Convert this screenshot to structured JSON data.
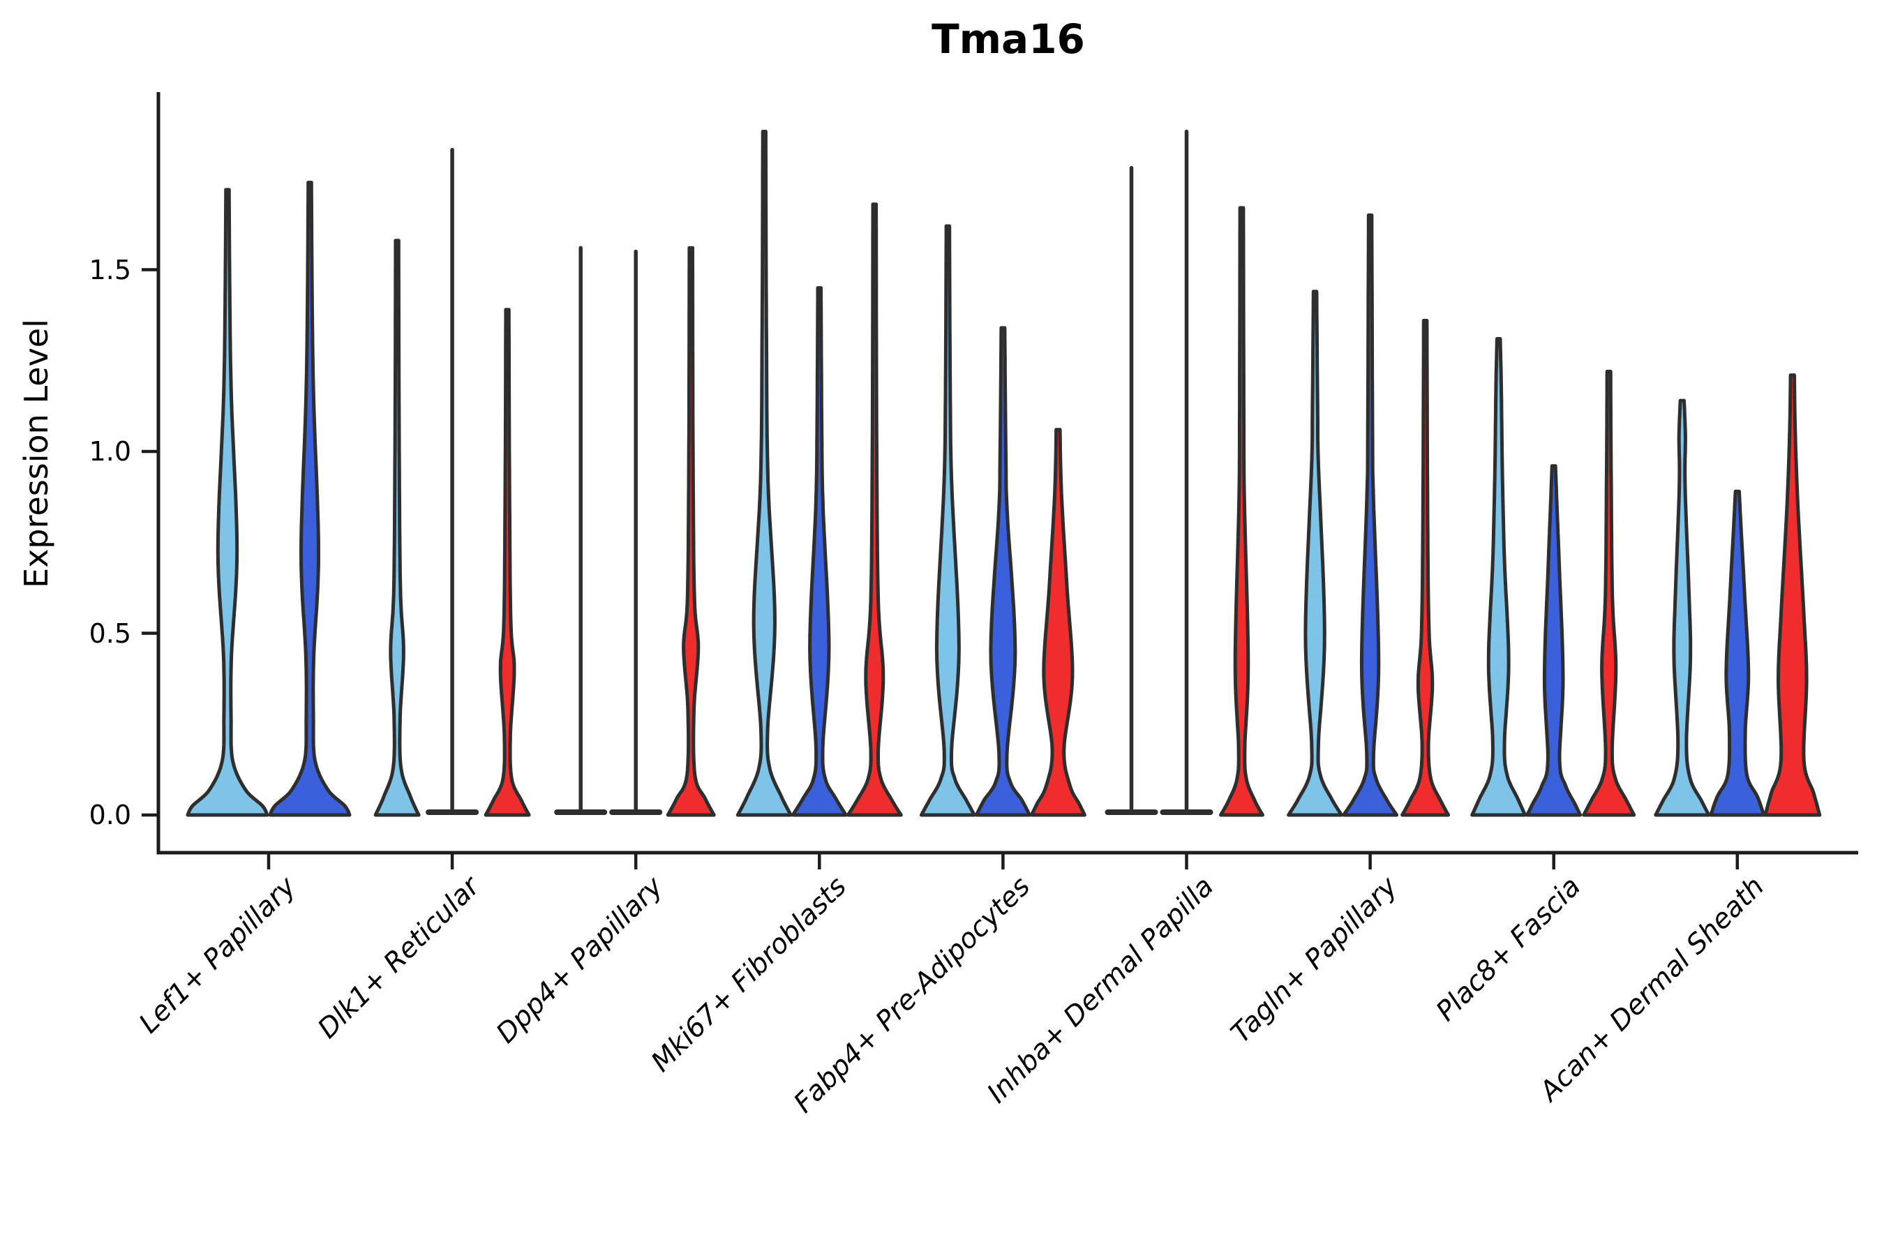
{
  "title": "Tma16",
  "ytick_labels": [
    "0.0",
    "0.5",
    "1.0",
    "1.5"
  ],
  "colors": {
    "light_blue": "#7EC3E8",
    "dark_blue": "#3A61DB",
    "red": "#EF2D2D",
    "outline": "#2E2E2E",
    "axis": "#1C1C1C"
  },
  "chart_data": {
    "type": "violin",
    "title": "Tma16",
    "xlabel": "",
    "ylabel": "Expression Level",
    "ylim": [
      0,
      2.0
    ],
    "yticks": [
      0.0,
      0.5,
      1.0,
      1.5
    ],
    "legend": "none",
    "grid": false,
    "hue_colors": [
      "#7EC3E8",
      "#3A61DB",
      "#EF2D2D"
    ],
    "categories": [
      "Lef1+ Papillary",
      "Dlk1+ Reticular",
      "Dpp4+ Papillary",
      "Mki67+ Fibroblasts",
      "Fabp4+ Pre-Adipocytes",
      "Inhba+ Dermal Papilla",
      "Tagln+ Papillary",
      "Plac8+ Fascia",
      "Acan+ Dermal Sheath"
    ],
    "groups": [
      {
        "label": "Lef1+ Papillary",
        "violins": [
          {
            "hue": "light_blue",
            "max": 1.72,
            "offset": -59,
            "half_width": 57,
            "shape": "violin",
            "profile": [
              [
                1.72,
                0.04
              ],
              [
                1.4,
                0.06
              ],
              [
                1.14,
                0.1
              ],
              [
                0.73,
                0.24
              ],
              [
                0.44,
                0.1
              ],
              [
                0.27,
                0.09
              ],
              [
                0.15,
                0.13
              ],
              [
                0.07,
                0.45
              ],
              [
                0.025,
                0.88
              ],
              [
                0,
                1
              ]
            ]
          },
          {
            "hue": "dark_blue",
            "max": 1.74,
            "offset": 59,
            "half_width": 57,
            "shape": "violin",
            "profile": [
              [
                1.74,
                0.04
              ],
              [
                1.4,
                0.06
              ],
              [
                1.13,
                0.1
              ],
              [
                0.72,
                0.22
              ],
              [
                0.44,
                0.1
              ],
              [
                0.27,
                0.09
              ],
              [
                0.15,
                0.13
              ],
              [
                0.07,
                0.45
              ],
              [
                0.025,
                0.88
              ],
              [
                0,
                1
              ]
            ]
          }
        ]
      },
      {
        "label": "Dlk1+ Reticular",
        "violins": [
          {
            "hue": "light_blue",
            "max": 1.58,
            "offset": -79,
            "half_width": 31,
            "shape": "violin",
            "profile": [
              [
                1.58,
                0.07
              ],
              [
                1.1,
                0.09
              ],
              [
                0.63,
                0.15
              ],
              [
                0.45,
                0.3
              ],
              [
                0.27,
                0.14
              ],
              [
                0.13,
                0.18
              ],
              [
                0.05,
                0.62
              ],
              [
                0,
                1
              ]
            ]
          },
          {
            "hue": "dark_blue",
            "max": 1.83,
            "offset": 0,
            "half_width": 38,
            "shape": "spike"
          },
          {
            "hue": "red",
            "max": 1.39,
            "offset": 79,
            "half_width": 31,
            "shape": "violin",
            "profile": [
              [
                1.39,
                0.07
              ],
              [
                0.9,
                0.1
              ],
              [
                0.53,
                0.16
              ],
              [
                0.4,
                0.32
              ],
              [
                0.22,
                0.14
              ],
              [
                0.1,
                0.2
              ],
              [
                0.04,
                0.65
              ],
              [
                0,
                1
              ]
            ]
          }
        ]
      },
      {
        "label": "Dpp4+ Papillary",
        "violins": [
          {
            "hue": "light_blue",
            "max": 1.56,
            "offset": -79,
            "half_width": 38,
            "shape": "spike"
          },
          {
            "hue": "dark_blue",
            "max": 1.55,
            "offset": 0,
            "half_width": 38,
            "shape": "spike"
          },
          {
            "hue": "red",
            "max": 1.56,
            "offset": 79,
            "half_width": 33,
            "shape": "violin",
            "profile": [
              [
                1.56,
                0.07
              ],
              [
                1.0,
                0.09
              ],
              [
                0.6,
                0.15
              ],
              [
                0.46,
                0.32
              ],
              [
                0.29,
                0.13
              ],
              [
                0.11,
                0.17
              ],
              [
                0.045,
                0.62
              ],
              [
                0,
                1
              ]
            ]
          }
        ]
      },
      {
        "label": "Mki67+ Fibroblasts",
        "violins": [
          {
            "hue": "light_blue",
            "max": 1.88,
            "offset": -79,
            "half_width": 38,
            "shape": "violin",
            "profile": [
              [
                1.88,
                0.055
              ],
              [
                1.35,
                0.08
              ],
              [
                0.92,
                0.14
              ],
              [
                0.53,
                0.4
              ],
              [
                0.24,
                0.13
              ],
              [
                0.13,
                0.2
              ],
              [
                0.05,
                0.65
              ],
              [
                0,
                1
              ]
            ]
          },
          {
            "hue": "dark_blue",
            "max": 1.45,
            "offset": 0,
            "half_width": 38,
            "shape": "violin",
            "profile": [
              [
                1.45,
                0.06
              ],
              [
                1.05,
                0.09
              ],
              [
                0.84,
                0.14
              ],
              [
                0.46,
                0.36
              ],
              [
                0.19,
                0.13
              ],
              [
                0.1,
                0.22
              ],
              [
                0.045,
                0.62
              ],
              [
                0,
                1
              ]
            ]
          },
          {
            "hue": "red",
            "max": 1.68,
            "offset": 79,
            "half_width": 38,
            "shape": "violin",
            "profile": [
              [
                1.68,
                0.06
              ],
              [
                1.05,
                0.08
              ],
              [
                0.59,
                0.14
              ],
              [
                0.38,
                0.33
              ],
              [
                0.18,
                0.14
              ],
              [
                0.1,
                0.24
              ],
              [
                0.04,
                0.66
              ],
              [
                0,
                1
              ]
            ]
          }
        ]
      },
      {
        "label": "Fabp4+ Pre-Adipocytes",
        "violins": [
          {
            "hue": "light_blue",
            "max": 1.62,
            "offset": -79,
            "half_width": 38,
            "shape": "violin",
            "profile": [
              [
                1.62,
                0.06
              ],
              [
                1.15,
                0.09
              ],
              [
                0.9,
                0.15
              ],
              [
                0.46,
                0.42
              ],
              [
                0.18,
                0.14
              ],
              [
                0.1,
                0.26
              ],
              [
                0.04,
                0.7
              ],
              [
                0,
                1
              ]
            ]
          },
          {
            "hue": "dark_blue",
            "max": 1.34,
            "offset": 0,
            "half_width": 38,
            "shape": "violin",
            "profile": [
              [
                1.34,
                0.065
              ],
              [
                0.98,
                0.11
              ],
              [
                0.83,
                0.16
              ],
              [
                0.45,
                0.46
              ],
              [
                0.17,
                0.15
              ],
              [
                0.09,
                0.28
              ],
              [
                0.04,
                0.72
              ],
              [
                0,
                1
              ]
            ]
          },
          {
            "hue": "red",
            "max": 1.06,
            "offset": 79,
            "half_width": 38,
            "shape": "violin",
            "profile": [
              [
                1.06,
                0.07
              ],
              [
                0.88,
                0.13
              ],
              [
                0.62,
                0.34
              ],
              [
                0.38,
                0.54
              ],
              [
                0.18,
                0.22
              ],
              [
                0.08,
                0.45
              ],
              [
                0.03,
                0.8
              ],
              [
                0,
                1
              ]
            ]
          }
        ]
      },
      {
        "label": "Inhba+ Dermal Papilla",
        "violins": [
          {
            "hue": "light_blue",
            "max": 1.78,
            "offset": -79,
            "half_width": 38,
            "shape": "spike"
          },
          {
            "hue": "dark_blue",
            "max": 1.88,
            "offset": 0,
            "half_width": 38,
            "shape": "spike"
          },
          {
            "hue": "red",
            "max": 1.67,
            "offset": 79,
            "half_width": 30,
            "shape": "violin",
            "profile": [
              [
                1.67,
                0.08
              ],
              [
                1.1,
                0.1
              ],
              [
                0.86,
                0.13
              ],
              [
                0.42,
                0.31
              ],
              [
                0.19,
                0.15
              ],
              [
                0.1,
                0.22
              ],
              [
                0.04,
                0.62
              ],
              [
                0,
                1
              ]
            ]
          }
        ]
      },
      {
        "label": "Tagln+ Papillary",
        "violins": [
          {
            "hue": "light_blue",
            "max": 1.44,
            "offset": -79,
            "half_width": 38,
            "shape": "violin",
            "profile": [
              [
                1.44,
                0.06
              ],
              [
                1.1,
                0.1
              ],
              [
                0.96,
                0.13
              ],
              [
                0.5,
                0.36
              ],
              [
                0.2,
                0.13
              ],
              [
                0.11,
                0.2
              ],
              [
                0.045,
                0.62
              ],
              [
                0,
                1
              ]
            ]
          },
          {
            "hue": "dark_blue",
            "max": 1.65,
            "offset": 0,
            "half_width": 38,
            "shape": "violin",
            "profile": [
              [
                1.65,
                0.06
              ],
              [
                1.05,
                0.09
              ],
              [
                0.88,
                0.12
              ],
              [
                0.42,
                0.32
              ],
              [
                0.17,
                0.13
              ],
              [
                0.1,
                0.22
              ],
              [
                0.04,
                0.64
              ],
              [
                0,
                1
              ]
            ]
          },
          {
            "hue": "red",
            "max": 1.36,
            "offset": 79,
            "half_width": 33,
            "shape": "violin",
            "profile": [
              [
                1.36,
                0.07
              ],
              [
                0.85,
                0.1
              ],
              [
                0.51,
                0.16
              ],
              [
                0.36,
                0.31
              ],
              [
                0.2,
                0.14
              ],
              [
                0.1,
                0.24
              ],
              [
                0.04,
                0.66
              ],
              [
                0,
                1
              ]
            ]
          }
        ]
      },
      {
        "label": "Plac8+ Fascia",
        "violins": [
          {
            "hue": "light_blue",
            "max": 1.31,
            "offset": -79,
            "half_width": 38,
            "shape": "violin",
            "profile": [
              [
                1.31,
                0.06
              ],
              [
                1.18,
                0.1
              ],
              [
                0.95,
                0.14
              ],
              [
                0.7,
                0.22
              ],
              [
                0.42,
                0.38
              ],
              [
                0.2,
                0.22
              ],
              [
                0.11,
                0.32
              ],
              [
                0.045,
                0.72
              ],
              [
                0,
                1
              ]
            ]
          },
          {
            "hue": "dark_blue",
            "max": 0.96,
            "offset": 0,
            "half_width": 38,
            "shape": "violin",
            "profile": [
              [
                0.96,
                0.065
              ],
              [
                0.85,
                0.12
              ],
              [
                0.7,
                0.2
              ],
              [
                0.38,
                0.35
              ],
              [
                0.15,
                0.22
              ],
              [
                0.08,
                0.45
              ],
              [
                0.03,
                0.8
              ],
              [
                0,
                1
              ]
            ]
          },
          {
            "hue": "red",
            "max": 1.22,
            "offset": 79,
            "half_width": 36,
            "shape": "violin",
            "profile": [
              [
                1.22,
                0.07
              ],
              [
                0.95,
                0.09
              ],
              [
                0.6,
                0.14
              ],
              [
                0.4,
                0.28
              ],
              [
                0.18,
                0.13
              ],
              [
                0.1,
                0.26
              ],
              [
                0.04,
                0.7
              ],
              [
                0,
                1
              ]
            ]
          }
        ]
      },
      {
        "label": "Acan+ Dermal Sheath",
        "violins": [
          {
            "hue": "light_blue",
            "max": 1.14,
            "offset": -79,
            "half_width": 38,
            "shape": "violin",
            "profile": [
              [
                1.14,
                0.07
              ],
              [
                1.04,
                0.12
              ],
              [
                0.9,
                0.11
              ],
              [
                0.6,
                0.26
              ],
              [
                0.43,
                0.31
              ],
              [
                0.2,
                0.16
              ],
              [
                0.1,
                0.3
              ],
              [
                0.04,
                0.72
              ],
              [
                0,
                1
              ]
            ]
          },
          {
            "hue": "dark_blue",
            "max": 0.89,
            "offset": 0,
            "half_width": 38,
            "shape": "violin",
            "profile": [
              [
                0.89,
                0.07
              ],
              [
                0.79,
                0.14
              ],
              [
                0.6,
                0.28
              ],
              [
                0.39,
                0.42
              ],
              [
                0.23,
                0.3
              ],
              [
                0.11,
                0.36
              ],
              [
                0.05,
                0.76
              ],
              [
                0,
                1
              ]
            ]
          },
          {
            "hue": "red",
            "max": 1.21,
            "offset": 79,
            "half_width": 39,
            "shape": "violin",
            "profile": [
              [
                1.21,
                0.07
              ],
              [
                1.06,
                0.1
              ],
              [
                0.85,
                0.2
              ],
              [
                0.55,
                0.42
              ],
              [
                0.37,
                0.52
              ],
              [
                0.15,
                0.42
              ],
              [
                0.06,
                0.78
              ],
              [
                0,
                1
              ]
            ]
          }
        ]
      }
    ]
  }
}
